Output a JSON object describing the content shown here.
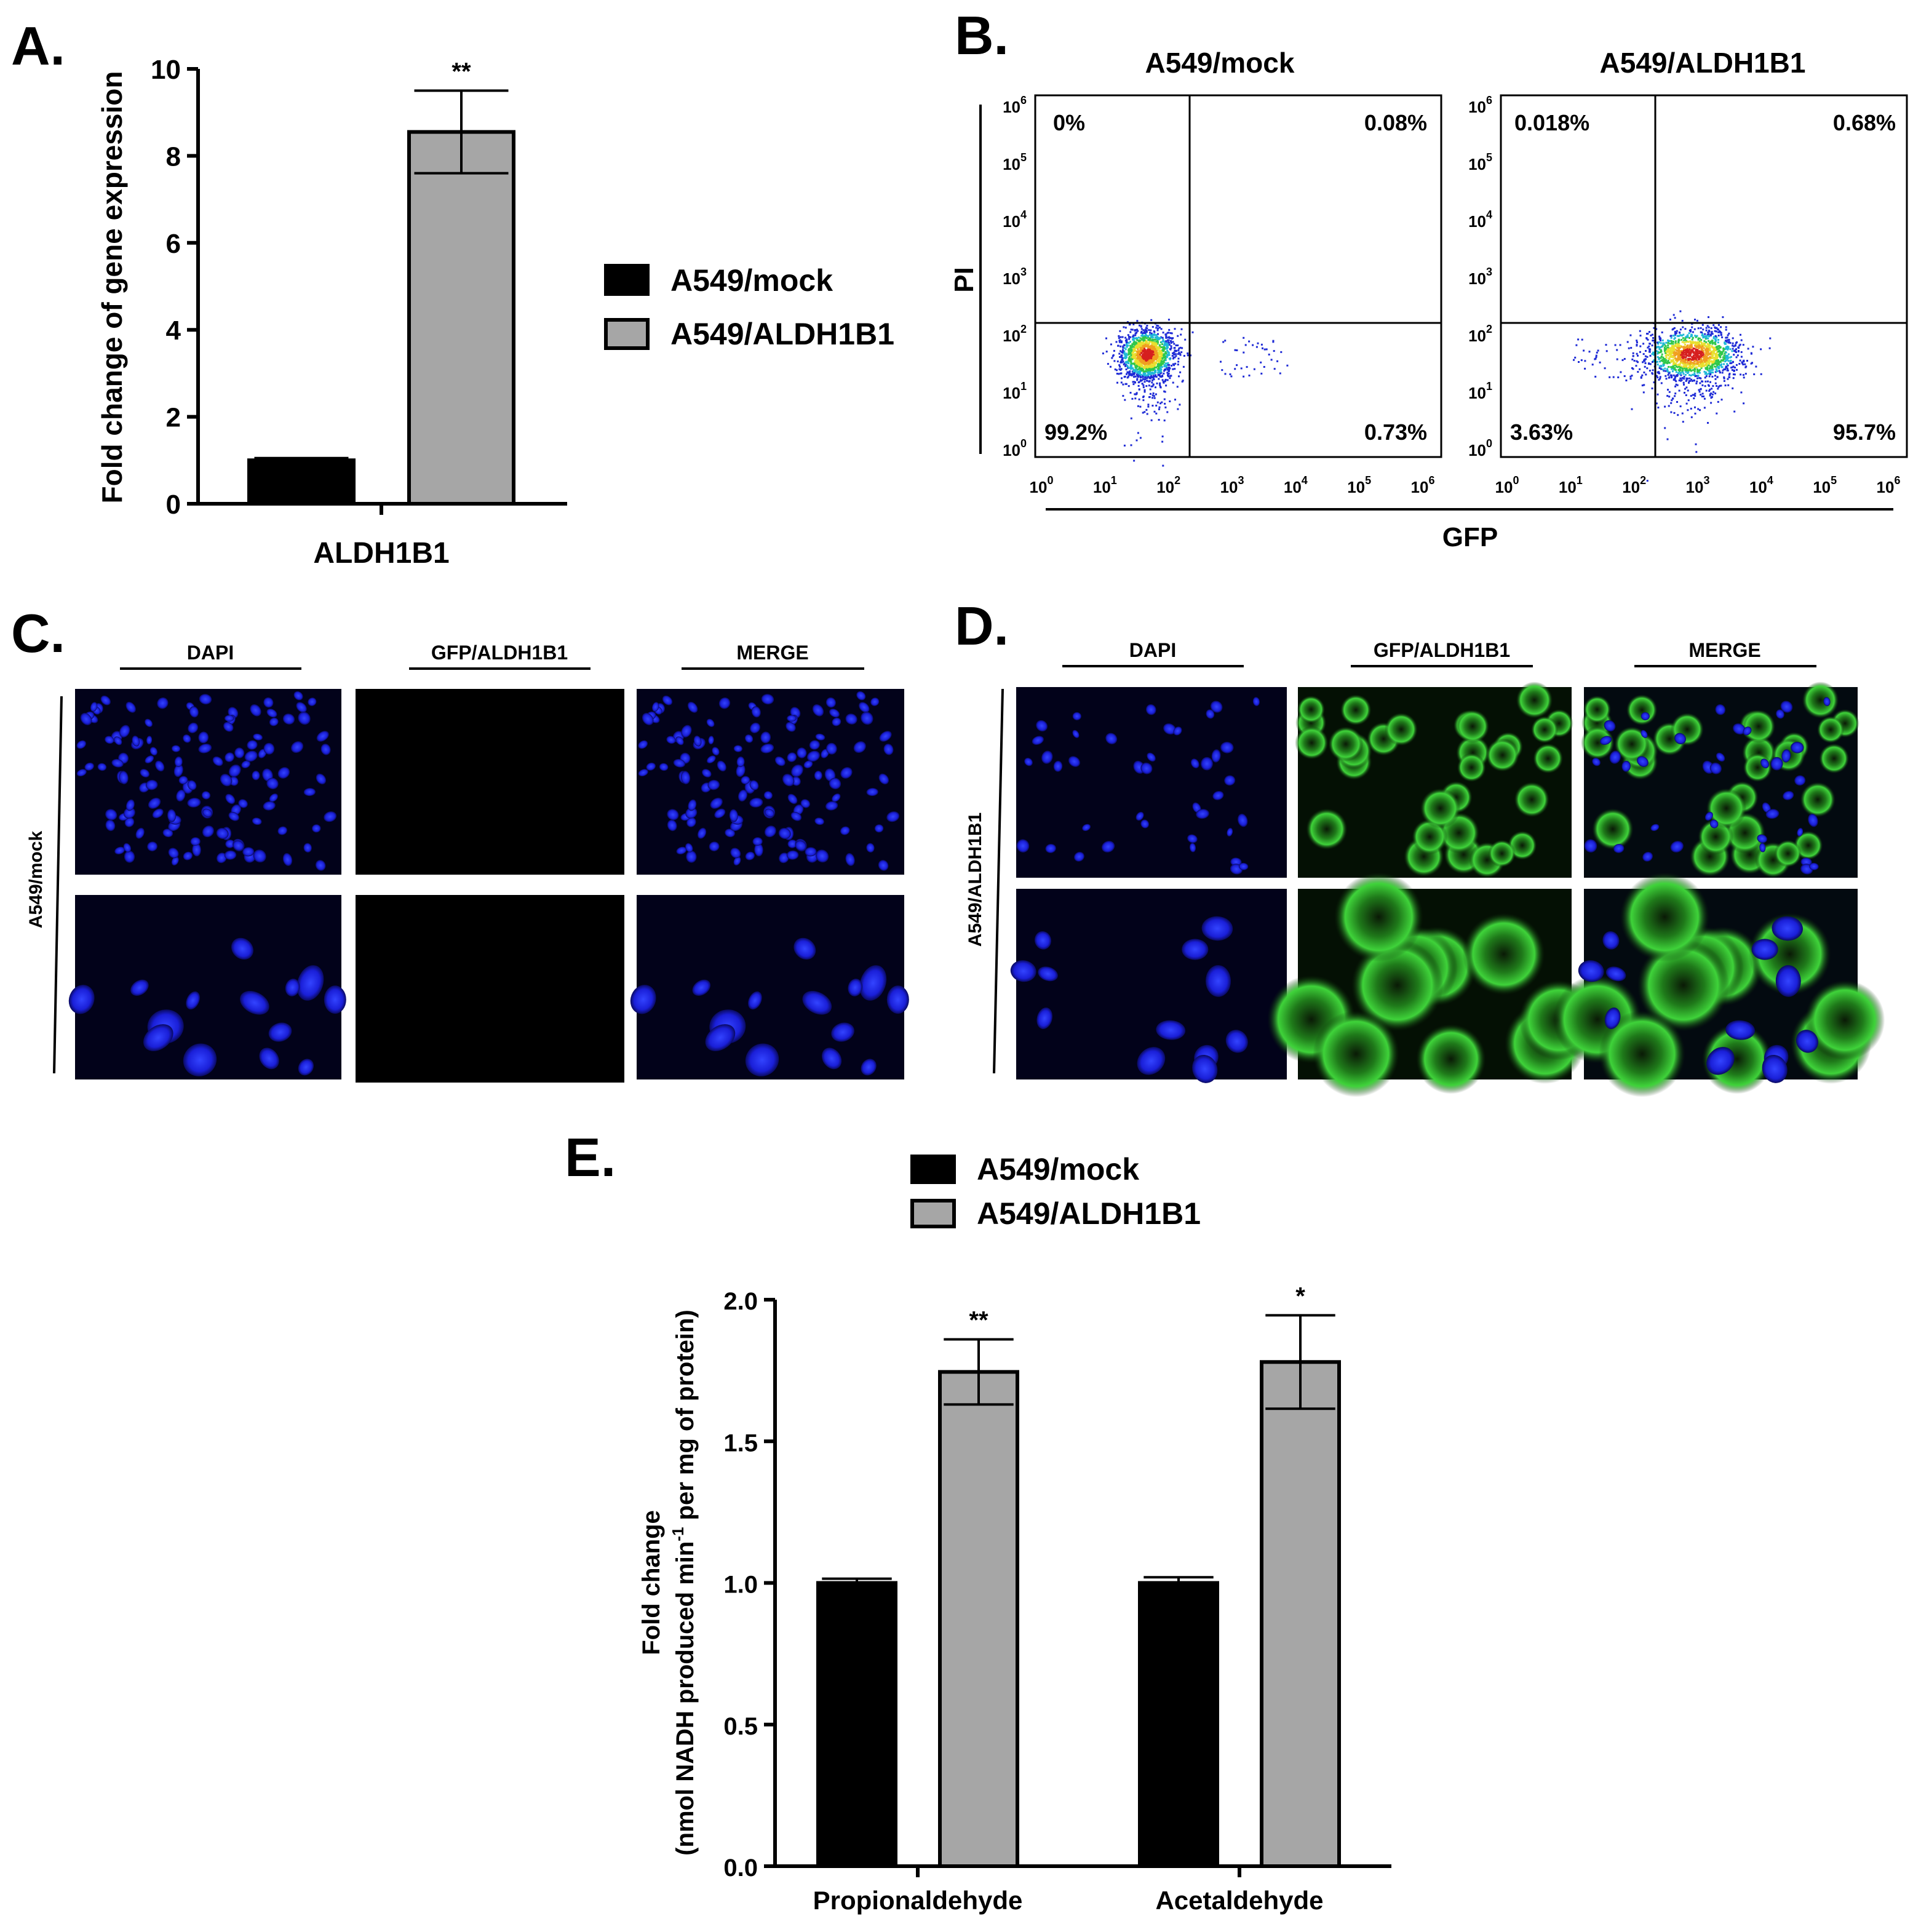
{
  "panel_labels": {
    "a": "A.",
    "b": "B.",
    "c": "C.",
    "d": "D.",
    "e": "E."
  },
  "colors": {
    "mock": "#000000",
    "aldh1b1": "#a6a6a6",
    "axis": "#000000"
  },
  "chart_data": [
    {
      "panel": "A",
      "type": "bar",
      "categories": [
        "ALDH1B1"
      ],
      "series": [
        {
          "name": "A549/mock",
          "values": [
            1.0
          ],
          "error": [
            0.05
          ],
          "color": "#000000"
        },
        {
          "name": "A549/ALDH1B1",
          "values": [
            8.55
          ],
          "error": [
            0.95
          ],
          "color": "#a6a6a6",
          "significance": [
            "**"
          ]
        }
      ],
      "xlabel": "",
      "ylabel": "Fold change of gene expression",
      "ylim": [
        0,
        10
      ],
      "yticks": [
        "0",
        "2",
        "4",
        "6",
        "8",
        "10"
      ],
      "legend": "right"
    },
    {
      "panel": "E",
      "type": "bar",
      "categories": [
        "Propionaldehyde",
        "Acetaldehyde"
      ],
      "series": [
        {
          "name": "A549/mock",
          "values": [
            1.0,
            1.0
          ],
          "error": [
            0.015,
            0.02
          ],
          "color": "#000000"
        },
        {
          "name": "A549/ALDH1B1",
          "values": [
            1.745,
            1.78
          ],
          "error": [
            0.115,
            0.165
          ],
          "color": "#a6a6a6",
          "significance": [
            "**",
            "*"
          ]
        }
      ],
      "ylabel_line1": "Fold change",
      "ylabel_line2": "(nmol NADH produced min",
      "ylabel_sup": "-1",
      "ylabel_line2_end": " per mg of protein)",
      "ylim": [
        0,
        2.0
      ],
      "yticks": [
        "0.0",
        "0.5",
        "1.0",
        "1.5",
        "2.0"
      ],
      "legend": "top"
    }
  ],
  "flow": {
    "xlabel": "GFP",
    "ylabel": "PI",
    "tick_labels": [
      "10",
      "10",
      "10",
      "10",
      "10",
      "10",
      "10"
    ],
    "tick_exps": [
      "0",
      "1",
      "2",
      "3",
      "4",
      "5",
      "6"
    ],
    "plots": [
      {
        "title": "A549/mock",
        "q_ul": "0%",
        "q_ur": "0.08%",
        "q_ll": "99.2%",
        "q_lr": "0.73%",
        "center_log": [
          1.55,
          1.7
        ],
        "events_pct_gfp_pos": 0.81
      },
      {
        "title": "A549/ALDH1B1",
        "q_ul": "0.018%",
        "q_ur": "0.68%",
        "q_ll": "3.63%",
        "q_lr": "95.7%",
        "center_log": [
          2.8,
          1.7
        ],
        "events_pct_gfp_pos": 96.38
      }
    ]
  },
  "micro": {
    "columns": [
      "DAPI",
      "GFP/ALDH1B1",
      "MERGE"
    ],
    "panel_c_row_label": "A549/mock",
    "panel_d_row_label": "A549/ALDH1B1"
  }
}
